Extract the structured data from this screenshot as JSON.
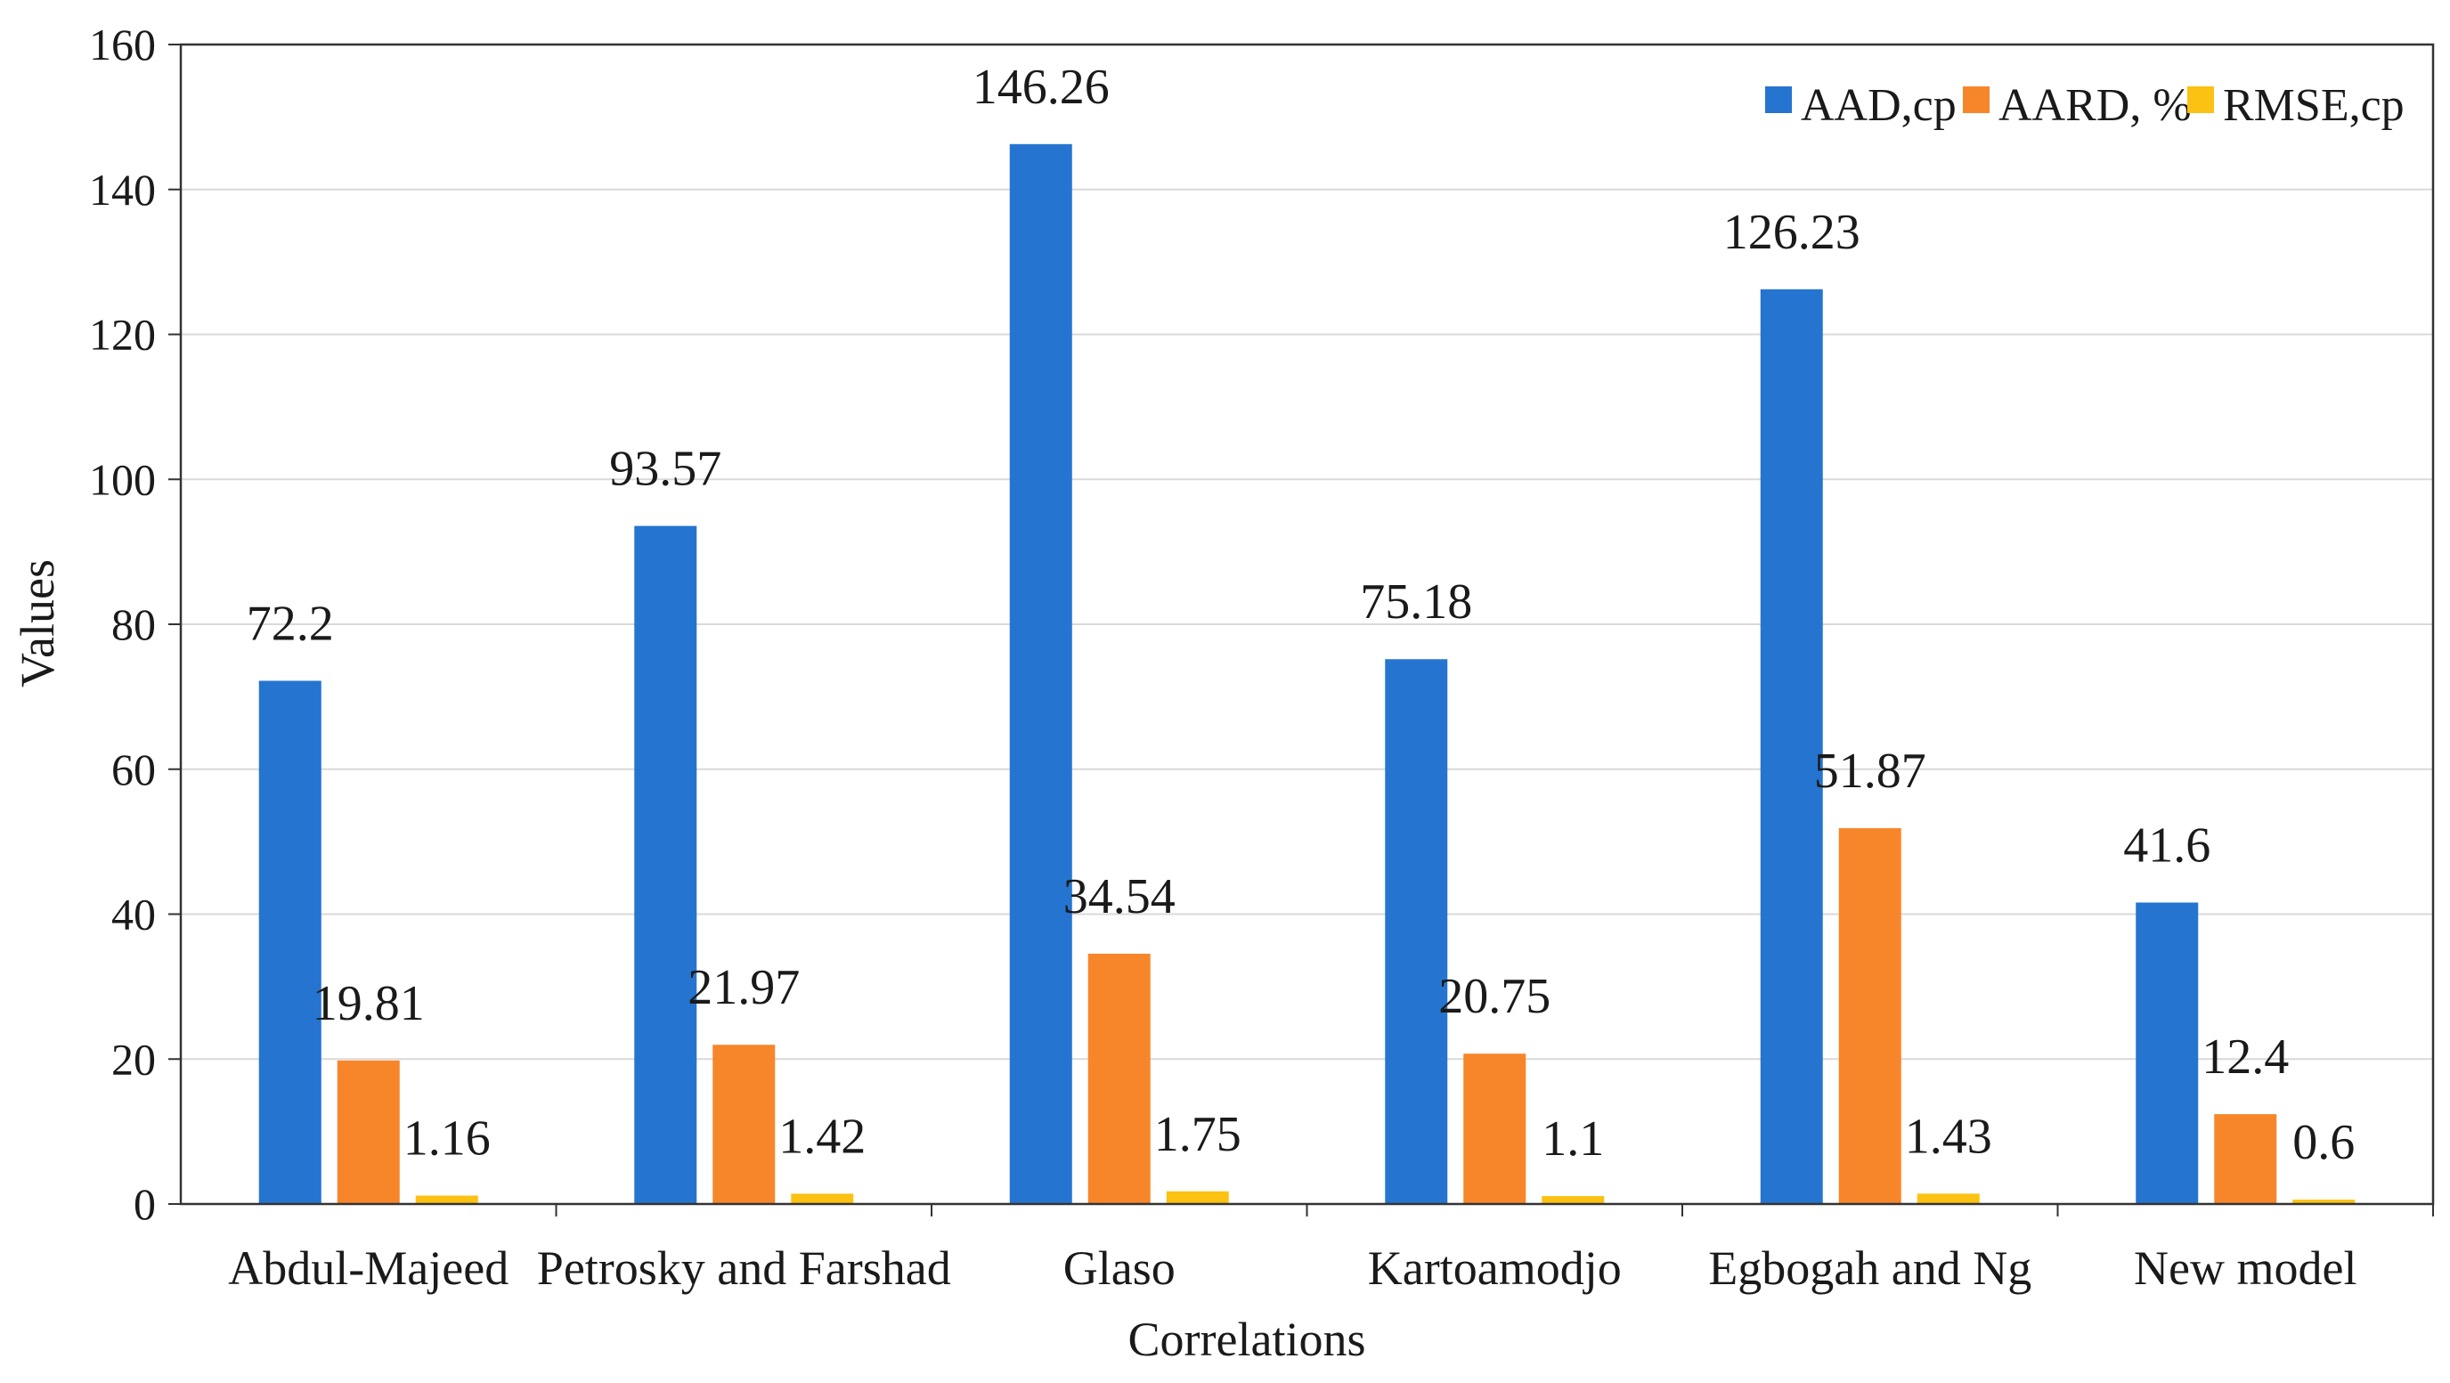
{
  "chart_data": {
    "type": "bar",
    "title": "",
    "xlabel": "Correlations",
    "ylabel": "Values",
    "ylim": [
      0,
      160
    ],
    "yticks": [
      0,
      20,
      40,
      60,
      80,
      100,
      120,
      140,
      160
    ],
    "grid": true,
    "legend_position": "top-right",
    "categories": [
      "Abdul-Majeed",
      "Petrosky and Farshad",
      "Glaso",
      "Kartoamodjo",
      "Egbogah and Ng",
      "New model"
    ],
    "series": [
      {
        "name": "AAD,cp",
        "color": "#2575d0",
        "values": [
          72.2,
          93.57,
          146.26,
          75.18,
          126.23,
          41.6
        ],
        "labels": [
          "72.2",
          "93.57",
          "146.26",
          "75.18",
          "126.23",
          "41.6"
        ]
      },
      {
        "name": "AARD, %",
        "color": "#f7862b",
        "values": [
          19.81,
          21.97,
          34.54,
          20.75,
          51.87,
          12.4
        ],
        "labels": [
          "19.81",
          "21.97",
          "34.54",
          "20.75",
          "51.87",
          "12.4"
        ]
      },
      {
        "name": "RMSE,cp",
        "color": "#fbc213",
        "values": [
          1.16,
          1.42,
          1.75,
          1.1,
          1.43,
          0.6
        ],
        "labels": [
          "1.16",
          "1.42",
          "1.75",
          "1.1",
          "1.43",
          "0.6"
        ]
      }
    ]
  }
}
